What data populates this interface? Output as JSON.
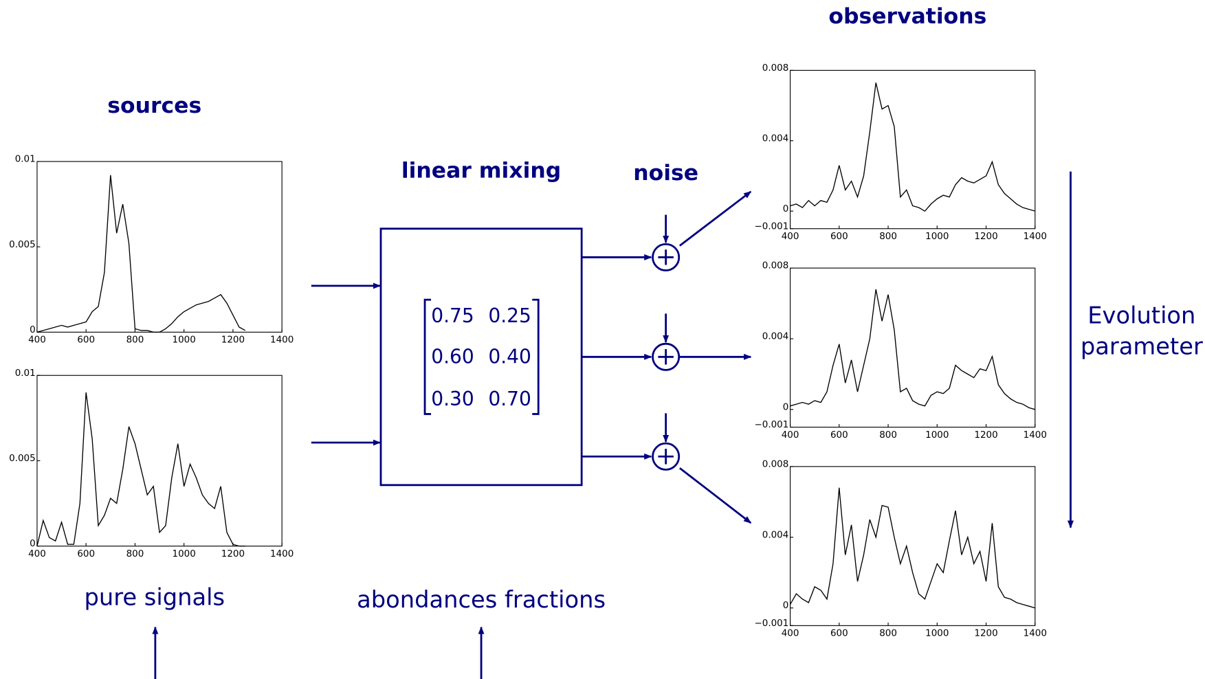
{
  "labels": {
    "sources": "sources",
    "linear_mixing": "linear mixing",
    "noise": "noise",
    "observations": "observations",
    "pure_signals": "pure signals",
    "abundances": "abondances fractions",
    "evolution": [
      "Evolution",
      "parameter"
    ]
  },
  "matrix": [
    [
      "0.75",
      "0.25"
    ],
    [
      "0.60",
      "0.40"
    ],
    [
      "0.30",
      "0.70"
    ]
  ],
  "chart_data": [
    {
      "type": "line",
      "color": "#000000",
      "x": [
        400,
        425,
        450,
        475,
        500,
        525,
        550,
        575,
        600,
        625,
        650,
        675,
        700,
        725,
        750,
        775,
        800,
        825,
        850,
        875,
        900,
        925,
        950,
        975,
        1000,
        1025,
        1050,
        1075,
        1100,
        1125,
        1150,
        1175,
        1200,
        1225,
        1250
      ],
      "values": [
        0,
        0.0001,
        0.0002,
        0.0003,
        0.0004,
        0.0003,
        0.0004,
        0.0005,
        0.0006,
        0.0012,
        0.0015,
        0.0035,
        0.0092,
        0.0058,
        0.0075,
        0.0052,
        0.0002,
        0.0001,
        0.0001,
        0,
        0,
        0.0002,
        0.0005,
        0.0009,
        0.0012,
        0.0014,
        0.0016,
        0.0017,
        0.0018,
        0.002,
        0.0022,
        0.0017,
        0.001,
        0.0003,
        0.0001
      ],
      "xlim": [
        400,
        1400
      ],
      "xticks": [
        400,
        600,
        800,
        1000,
        1200,
        1400
      ],
      "ylim": [
        0,
        0.01
      ],
      "yticks": [
        0,
        0.005,
        0.01
      ]
    },
    {
      "type": "line",
      "color": "#000000",
      "x": [
        400,
        425,
        450,
        475,
        500,
        525,
        550,
        575,
        600,
        625,
        650,
        675,
        700,
        725,
        750,
        775,
        800,
        825,
        850,
        875,
        900,
        925,
        950,
        975,
        1000,
        1025,
        1050,
        1075,
        1100,
        1125,
        1150,
        1175,
        1200,
        1225,
        1250
      ],
      "values": [
        0,
        0.0015,
        0.0005,
        0.0003,
        0.0014,
        0.0001,
        0.0001,
        0.0025,
        0.009,
        0.0063,
        0.0012,
        0.0018,
        0.0028,
        0.0025,
        0.0045,
        0.007,
        0.006,
        0.0045,
        0.003,
        0.0035,
        0.0008,
        0.0012,
        0.004,
        0.006,
        0.0035,
        0.0048,
        0.004,
        0.003,
        0.0025,
        0.0022,
        0.0035,
        0.0008,
        0.0001,
        0,
        0
      ],
      "xlim": [
        400,
        1400
      ],
      "xticks": [
        400,
        600,
        800,
        1000,
        1200,
        1400
      ],
      "ylim": [
        0,
        0.01
      ],
      "yticks": [
        0,
        0.005,
        0.01
      ]
    },
    {
      "type": "line",
      "color": "#000000",
      "x": [
        400,
        425,
        450,
        475,
        500,
        525,
        550,
        575,
        600,
        625,
        650,
        675,
        700,
        725,
        750,
        775,
        800,
        825,
        850,
        875,
        900,
        925,
        950,
        975,
        1000,
        1025,
        1050,
        1075,
        1100,
        1125,
        1150,
        1175,
        1200,
        1225,
        1250,
        1275,
        1300,
        1325,
        1350,
        1375,
        1400
      ],
      "values": [
        0.0003,
        0.0004,
        0.0002,
        0.0006,
        0.0003,
        0.0006,
        0.0005,
        0.0012,
        0.0026,
        0.0012,
        0.0017,
        0.0008,
        0.002,
        0.0045,
        0.0073,
        0.0058,
        0.006,
        0.0048,
        0.0008,
        0.0012,
        0.0003,
        0.0002,
        0,
        0.0004,
        0.0007,
        0.0009,
        0.0008,
        0.0015,
        0.0019,
        0.0017,
        0.0016,
        0.0018,
        0.002,
        0.0028,
        0.0015,
        0.001,
        0.0007,
        0.0004,
        0.0002,
        0.0001,
        0
      ],
      "xlim": [
        400,
        1400
      ],
      "xticks": [
        400,
        600,
        800,
        1000,
        1200,
        1400
      ],
      "ylim": [
        -0.001,
        0.008
      ],
      "yticks": [
        {
          "value": -0.001,
          "label": "−0.001"
        },
        0,
        0.004,
        0.008
      ]
    },
    {
      "type": "line",
      "color": "#000000",
      "x": [
        400,
        425,
        450,
        475,
        500,
        525,
        550,
        575,
        600,
        625,
        650,
        675,
        700,
        725,
        750,
        775,
        800,
        825,
        850,
        875,
        900,
        925,
        950,
        975,
        1000,
        1025,
        1050,
        1075,
        1100,
        1125,
        1150,
        1175,
        1200,
        1225,
        1250,
        1275,
        1300,
        1325,
        1350,
        1375,
        1400
      ],
      "values": [
        0.0002,
        0.0003,
        0.0004,
        0.0003,
        0.0005,
        0.0004,
        0.001,
        0.0025,
        0.0037,
        0.0015,
        0.0028,
        0.001,
        0.0025,
        0.004,
        0.0068,
        0.005,
        0.0065,
        0.0045,
        0.001,
        0.0012,
        0.0005,
        0.0003,
        0.0002,
        0.0008,
        0.001,
        0.0009,
        0.0012,
        0.0025,
        0.0022,
        0.002,
        0.0018,
        0.0023,
        0.0022,
        0.003,
        0.0014,
        0.0009,
        0.0006,
        0.0004,
        0.0003,
        0.0001,
        0
      ],
      "xlim": [
        400,
        1400
      ],
      "xticks": [
        400,
        600,
        800,
        1000,
        1200,
        1400
      ],
      "ylim": [
        -0.001,
        0.008
      ],
      "yticks": [
        {
          "value": -0.001,
          "label": "−0.001"
        },
        0,
        0.004,
        0.008
      ]
    },
    {
      "type": "line",
      "color": "#000000",
      "x": [
        400,
        425,
        450,
        475,
        500,
        525,
        550,
        575,
        600,
        625,
        650,
        675,
        700,
        725,
        750,
        775,
        800,
        825,
        850,
        875,
        900,
        925,
        950,
        975,
        1000,
        1025,
        1050,
        1075,
        1100,
        1125,
        1150,
        1175,
        1200,
        1225,
        1250,
        1275,
        1300,
        1325,
        1350,
        1375,
        1400
      ],
      "values": [
        0.0002,
        0.0008,
        0.0005,
        0.0003,
        0.0012,
        0.001,
        0.0005,
        0.0025,
        0.0068,
        0.003,
        0.0047,
        0.0015,
        0.003,
        0.005,
        0.004,
        0.0058,
        0.0057,
        0.004,
        0.0025,
        0.0035,
        0.002,
        0.0008,
        0.0005,
        0.0015,
        0.0025,
        0.002,
        0.0038,
        0.0055,
        0.003,
        0.004,
        0.0025,
        0.0032,
        0.0015,
        0.0048,
        0.0012,
        0.0006,
        0.0005,
        0.0003,
        0.0002,
        0.0001,
        0
      ],
      "xlim": [
        400,
        1400
      ],
      "xticks": [
        400,
        600,
        800,
        1000,
        1200,
        1400
      ],
      "ylim": [
        -0.001,
        0.008
      ],
      "yticks": [
        {
          "value": -0.001,
          "label": "−0.001"
        },
        0,
        0.004,
        0.008
      ]
    }
  ]
}
